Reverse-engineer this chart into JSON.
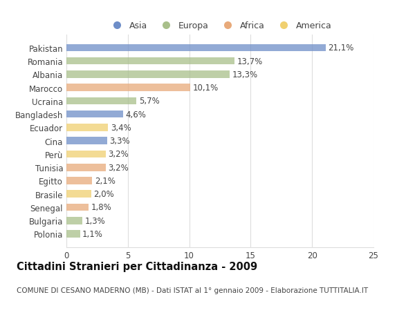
{
  "categories": [
    "Pakistan",
    "Romania",
    "Albania",
    "Marocco",
    "Ucraina",
    "Bangladesh",
    "Ecuador",
    "Cina",
    "Perù",
    "Tunisia",
    "Egitto",
    "Brasile",
    "Senegal",
    "Bulgaria",
    "Polonia"
  ],
  "values": [
    21.1,
    13.7,
    13.3,
    10.1,
    5.7,
    4.6,
    3.4,
    3.3,
    3.2,
    3.2,
    2.1,
    2.0,
    1.8,
    1.3,
    1.1
  ],
  "labels": [
    "21,1%",
    "13,7%",
    "13,3%",
    "10,1%",
    "5,7%",
    "4,6%",
    "3,4%",
    "3,3%",
    "3,2%",
    "3,2%",
    "2,1%",
    "2,0%",
    "1,8%",
    "1,3%",
    "1,1%"
  ],
  "colors": [
    "#6e8ec8",
    "#a8bf8a",
    "#a8bf8a",
    "#e8aa7a",
    "#a8bf8a",
    "#6e8ec8",
    "#f0d070",
    "#6e8ec8",
    "#f0d070",
    "#e8aa7a",
    "#e8aa7a",
    "#f0d070",
    "#e8aa7a",
    "#a8bf8a",
    "#a8bf8a"
  ],
  "legend_labels": [
    "Asia",
    "Europa",
    "Africa",
    "America"
  ],
  "legend_colors": [
    "#6e8ec8",
    "#a8bf8a",
    "#e8aa7a",
    "#f0d070"
  ],
  "title": "Cittadini Stranieri per Cittadinanza - 2009",
  "subtitle": "COMUNE DI CESANO MADERNO (MB) - Dati ISTAT al 1° gennaio 2009 - Elaborazione TUTTITALIA.IT",
  "xlim": [
    0,
    25
  ],
  "xticks": [
    0,
    5,
    10,
    15,
    20,
    25
  ],
  "background_color": "#ffffff",
  "plot_bg_color": "#ffffff",
  "grid_color": "#dddddd",
  "text_color": "#444444",
  "bar_height": 0.55,
  "label_fontsize": 8.5,
  "tick_fontsize": 8.5,
  "ytick_fontsize": 8.5,
  "title_fontsize": 10.5,
  "subtitle_fontsize": 7.5
}
